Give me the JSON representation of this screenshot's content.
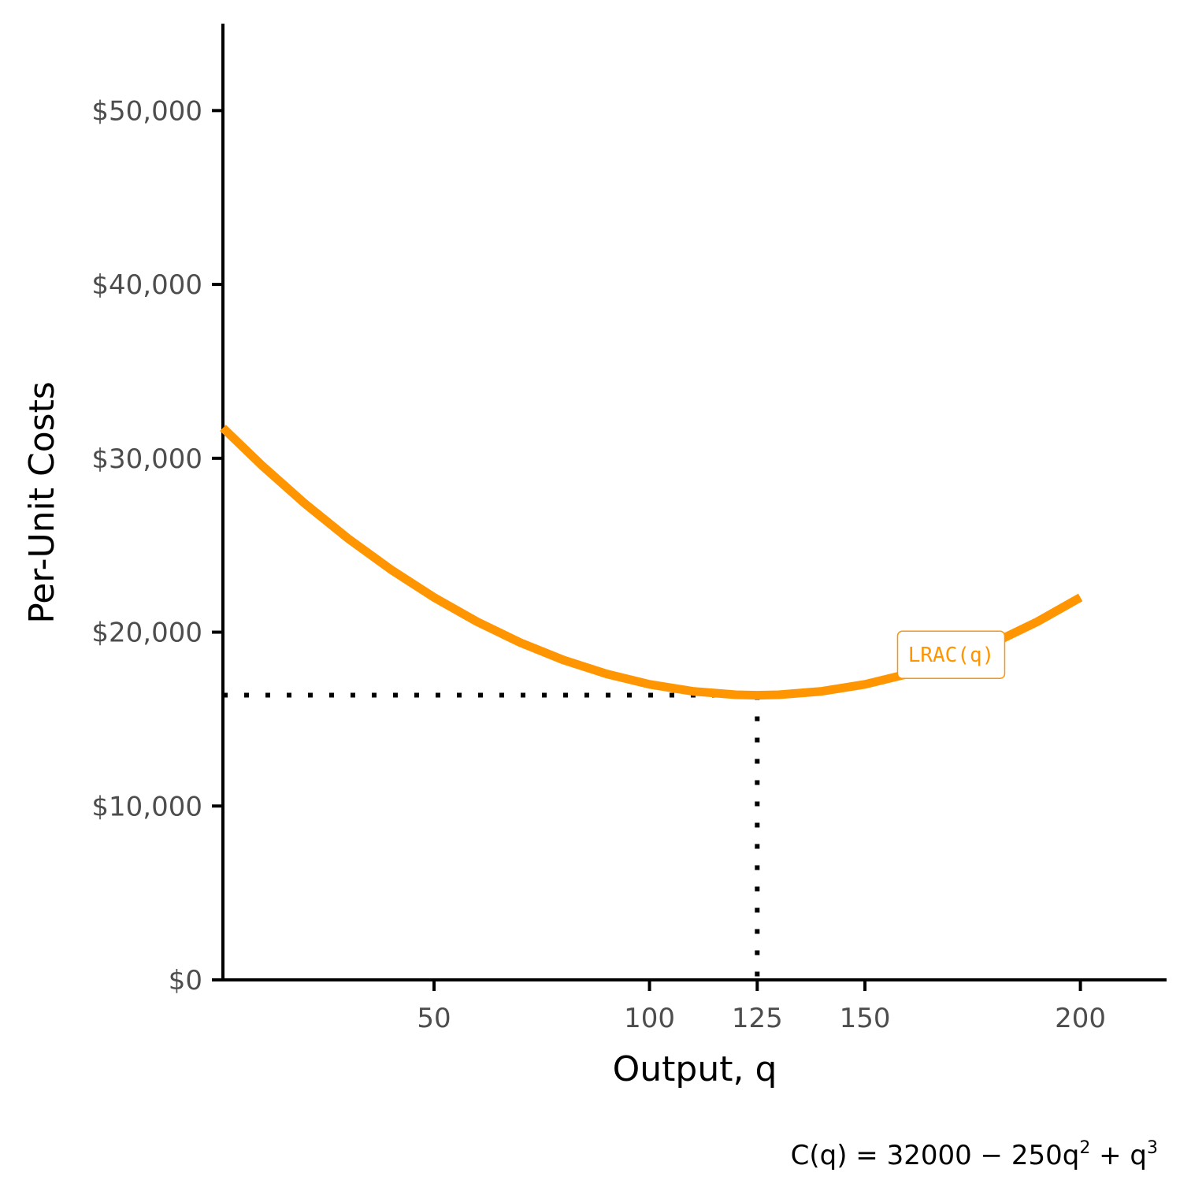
{
  "chart_data": {
    "type": "line",
    "xlabel": "Output, q",
    "ylabel": "Per-Unit Costs",
    "xlim": [
      1,
      220
    ],
    "ylim": [
      0,
      55000
    ],
    "x_ticks": [
      50,
      100,
      125,
      150,
      200
    ],
    "x_tick_labels": [
      "50",
      "100",
      "125",
      "150",
      "200"
    ],
    "y_ticks": [
      0,
      10000,
      20000,
      30000,
      40000,
      50000
    ],
    "y_tick_labels": [
      "$0",
      "$10,000",
      "$20,000",
      "$30,000",
      "$40,000",
      "$50,000"
    ],
    "series": [
      {
        "name": "LRAC(q)",
        "color": "#ff9500",
        "x": [
          1,
          10,
          20,
          30,
          40,
          50,
          60,
          70,
          80,
          90,
          100,
          110,
          120,
          125,
          130,
          140,
          150,
          160,
          170,
          180,
          190,
          200
        ],
        "y": [
          31751,
          29600,
          27400,
          25400,
          23600,
          22000,
          20600,
          19400,
          18400,
          17600,
          17000,
          16600,
          16400,
          16375,
          16400,
          16600,
          17000,
          17600,
          18400,
          19400,
          20600,
          22000
        ]
      }
    ],
    "annotations": {
      "minimum_point": {
        "x": 125,
        "y": 16375
      },
      "curve_label": {
        "text": "LRAC(q)",
        "x": 170,
        "y": 18700
      }
    },
    "caption": {
      "base": "C(q) = 32000 − 250q",
      "exp1": "2",
      "mid": " + q",
      "exp2": "3"
    },
    "grid": false,
    "legend": "none"
  }
}
